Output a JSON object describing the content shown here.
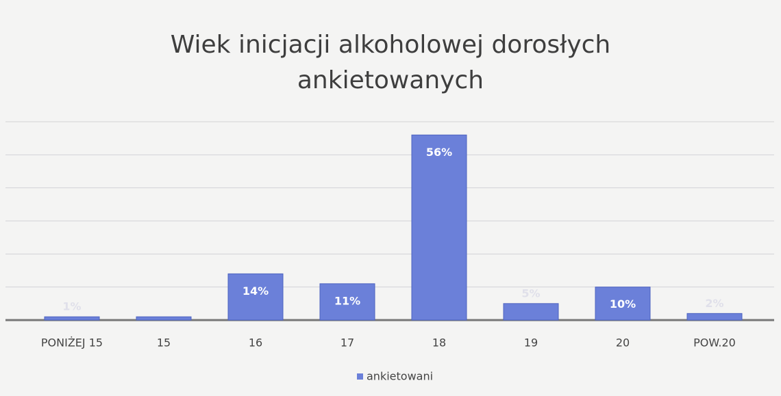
{
  "chart_data": {
    "type": "bar",
    "title": "Wiek inicjacji alkoholowej dorosłych ankietowanych",
    "categories": [
      "PONIŻEJ 15",
      "15",
      "16",
      "17",
      "18",
      "19",
      "20",
      "POW.20"
    ],
    "series": [
      {
        "name": "ankietowani",
        "color": "#6b80d9",
        "values": [
          1,
          1,
          14,
          11,
          56,
          5,
          10,
          2
        ],
        "value_labels": [
          "1%",
          null,
          "14%",
          "11%",
          "56%",
          "5%",
          "10%",
          "2%"
        ]
      }
    ],
    "ylim": [
      0,
      60
    ],
    "yticks": [
      0,
      10,
      20,
      30,
      40,
      50,
      60
    ],
    "grid": true
  }
}
